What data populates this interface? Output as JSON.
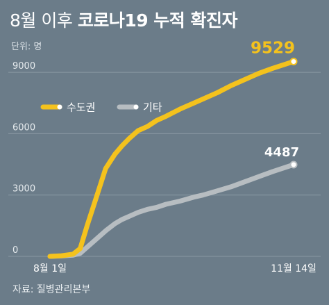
{
  "title_light": "8월 이후 ",
  "title_bold": "코로나19 누적 확진자",
  "unit_label": "단위: 명",
  "source_label": "자료: 질병관리본부",
  "chart_data": {
    "type": "line",
    "title": "8월 이후 코로나19 누적 확진자",
    "x_ticks": [
      "8월 1일",
      "11월 14일"
    ],
    "x": [
      0,
      5,
      10,
      13,
      16,
      20,
      24,
      28,
      31,
      34,
      38,
      42,
      46,
      50,
      56,
      62,
      66,
      72,
      78,
      84,
      90,
      96,
      105
    ],
    "y_ticks": [
      0,
      3000,
      6000,
      9000
    ],
    "ylim": [
      0,
      10500
    ],
    "grid": true,
    "legend_position": "top-left",
    "series": [
      {
        "name": "수도권",
        "color": "#f4c21d",
        "values": [
          0,
          30,
          110,
          380,
          1500,
          2900,
          4300,
          5000,
          5400,
          5750,
          6150,
          6350,
          6650,
          6850,
          7200,
          7500,
          7700,
          8000,
          8350,
          8650,
          8950,
          9200,
          9529
        ],
        "end_label": "9529"
      },
      {
        "name": "기타",
        "color": "#b7bdc1",
        "values": [
          0,
          20,
          60,
          150,
          450,
          850,
          1250,
          1600,
          1800,
          1950,
          2150,
          2300,
          2400,
          2550,
          2700,
          2900,
          3000,
          3200,
          3400,
          3650,
          3900,
          4150,
          4487
        ],
        "end_label": "4487"
      }
    ]
  }
}
